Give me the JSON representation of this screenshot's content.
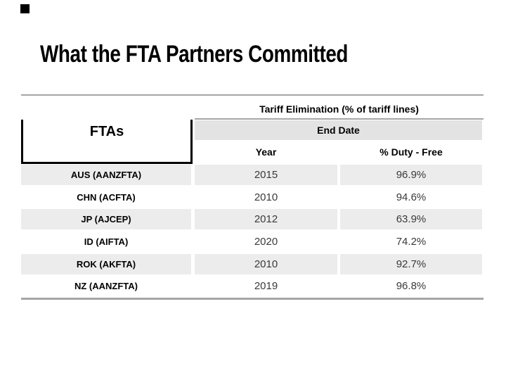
{
  "slide": {
    "title": "What the FTA Partners Committed",
    "background_color": "#ffffff",
    "text_color": "#000000"
  },
  "table": {
    "top_header": "Tariff Elimination (% of tariff lines)",
    "fta_header": "FTAs",
    "end_date_header": "End Date",
    "col_headers": {
      "year": "Year",
      "duty_free": "% Duty - Free"
    },
    "rows": [
      {
        "fta": "AUS (AANZFTA)",
        "year": "2015",
        "duty_free": "96.9%"
      },
      {
        "fta": "CHN (ACFTA)",
        "year": "2010",
        "duty_free": "94.6%"
      },
      {
        "fta": "JP (AJCEP)",
        "year": "2012",
        "duty_free": "63.9%"
      },
      {
        "fta": "ID (AIFTA)",
        "year": "2020",
        "duty_free": "74.2%"
      },
      {
        "fta": "ROK (AKFTA)",
        "year": "2010",
        "duty_free": "92.7%"
      },
      {
        "fta": "NZ (AANZFTA)",
        "year": "2019",
        "duty_free": "96.8%"
      }
    ],
    "colors": {
      "divider_line": "#a6a6a6",
      "header_cell_bg": "#e3e3e3",
      "banded_row_bg": "#ececec",
      "box_border": "#000000",
      "value_text": "#3a3a3a"
    }
  }
}
